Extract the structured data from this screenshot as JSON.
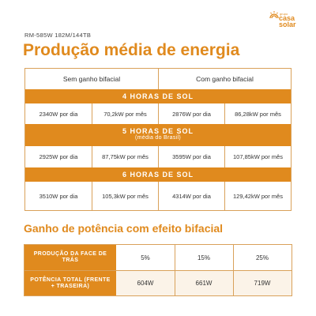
{
  "brand": {
    "small": "grupo",
    "line1": "casa",
    "line2": "solar",
    "color": "#e08a1e"
  },
  "model": "RM-585W 182M/144TB",
  "title": "Produção média de energia",
  "table1": {
    "col_headers": [
      "Sem ganho bifacial",
      "Com ganho bifacial"
    ],
    "sections": [
      {
        "title": "4 HORAS DE SOL",
        "subtitle": "",
        "values": [
          "2340W por dia",
          "70,2kW por mês",
          "2876W por dia",
          "86,28kW por mês"
        ]
      },
      {
        "title": "5 HORAS DE SOL",
        "subtitle": "(média do Brasil)",
        "values": [
          "2925W por dia",
          "87,75kW por mês",
          "3595W por dia",
          "107,85kW por mês"
        ]
      },
      {
        "title": "6 HORAS DE SOL",
        "subtitle": "",
        "values": [
          "3510W por dia",
          "105,3kW por mês",
          "4314W por dia",
          "129,42kW por mês"
        ]
      }
    ]
  },
  "subtitle": "Ganho de potência com efeito bifacial",
  "table2": {
    "rows": [
      {
        "label": "PRODUÇÃO DA FACE DE TRÁS",
        "values": [
          "5%",
          "15%",
          "25%"
        ]
      },
      {
        "label": "POTÊNCIA TOTAL (FRENTE + TRASEIRA)",
        "values": [
          "604W",
          "661W",
          "719W"
        ]
      }
    ]
  },
  "colors": {
    "accent": "#e08a1e",
    "border": "#d9a15a",
    "text": "#333333"
  }
}
